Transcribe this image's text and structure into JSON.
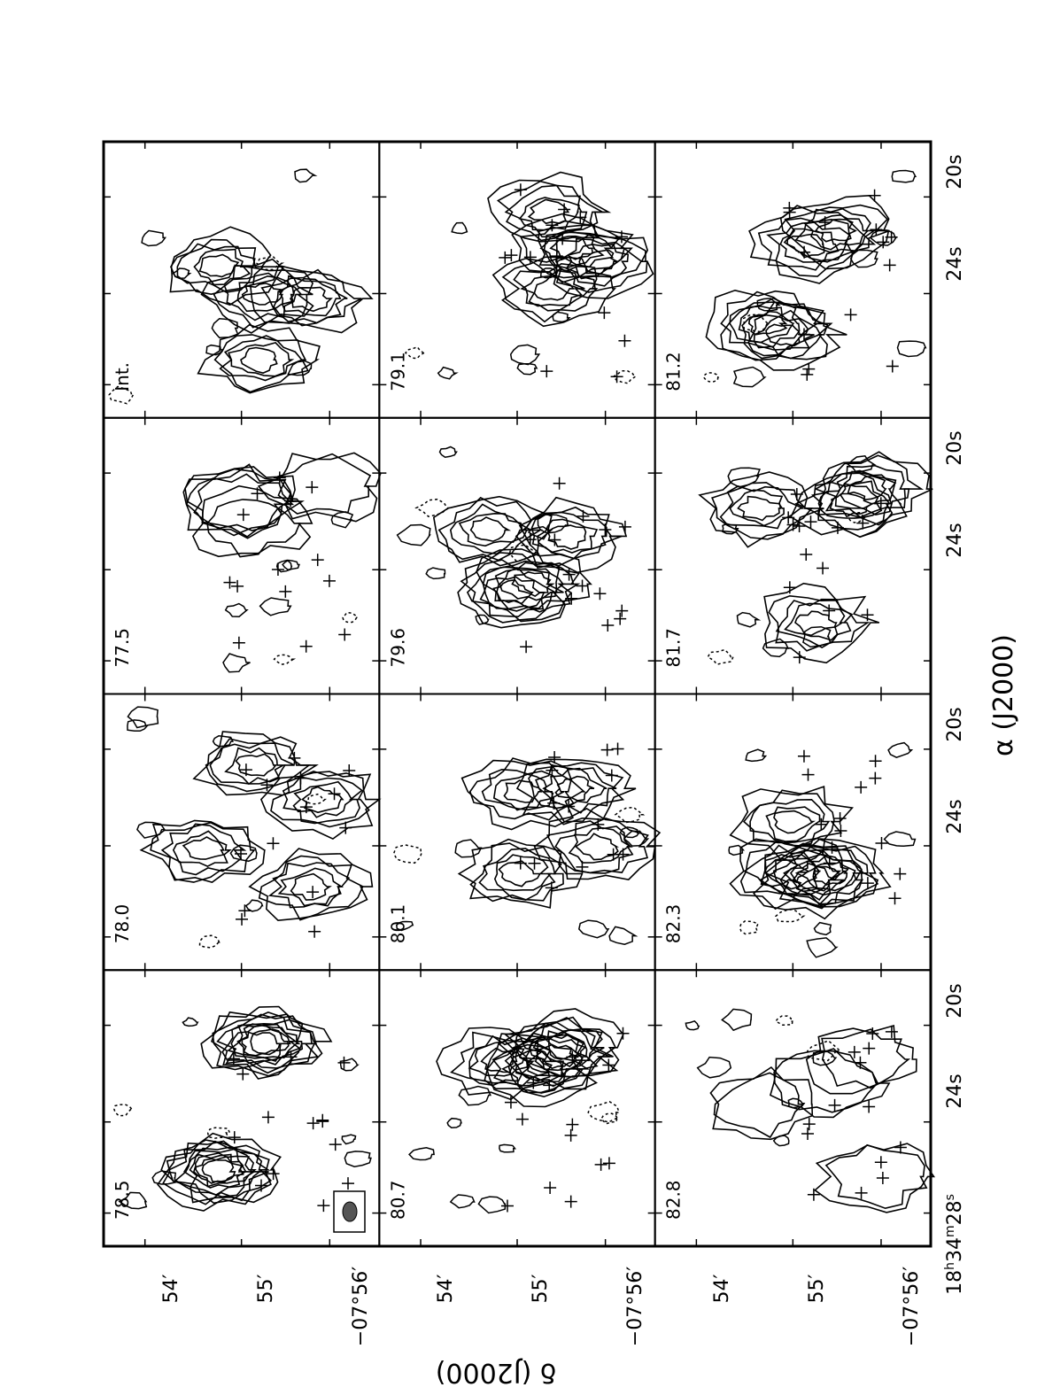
{
  "figure": {
    "axis_ra_label": "α (J2000)",
    "axis_dec_label": "δ (J2000)",
    "ra_tick_labels": [
      "18h34m28s",
      "24s",
      "20s"
    ],
    "ra_tick_label_parts": {
      "first_h": "18",
      "first_m": "34",
      "first_s": "28"
    },
    "dec_tick_labels": [
      "54′",
      "55′",
      "−07°56′"
    ],
    "panel_labels": [
      [
        "Int.",
        "79.1",
        "81.2"
      ],
      [
        "77.5",
        "79.6",
        "81.7"
      ],
      [
        "78.0",
        "80.1",
        "82.3"
      ],
      [
        "78.5",
        "80.7",
        "82.8"
      ]
    ]
  }
}
